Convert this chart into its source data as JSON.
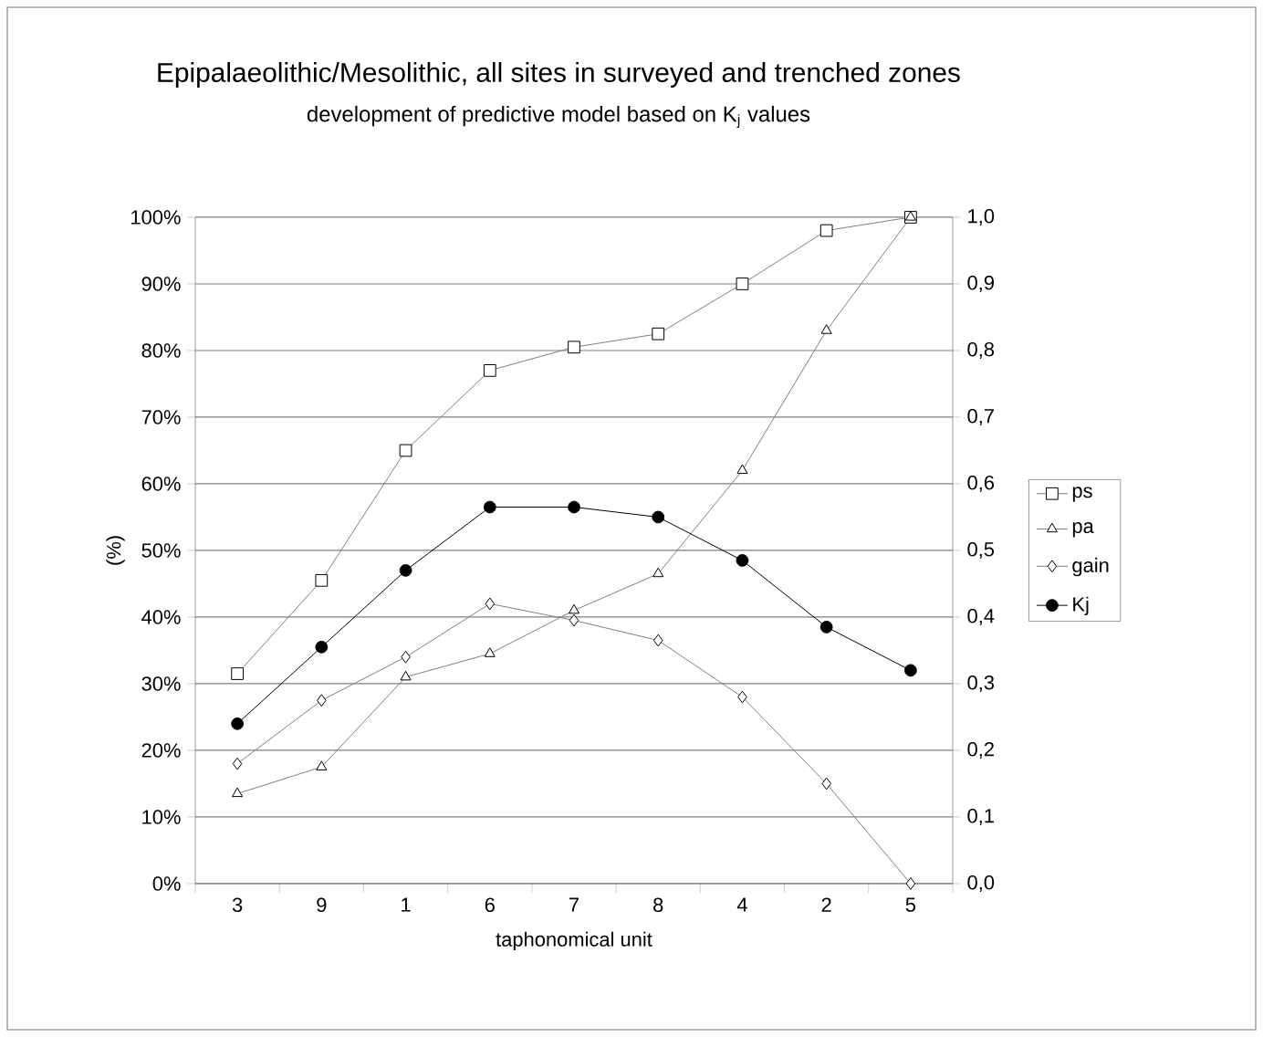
{
  "chart_data": {
    "type": "line",
    "title": "Epipalaeolithic/Mesolithic, all sites in surveyed and trenched zones",
    "subtitle": "development of predictive model based on K$_{j}$ values",
    "xlabel": "taphonomical unit",
    "ylabel": "(%)",
    "categories": [
      "3",
      "9",
      "1",
      "6",
      "7",
      "8",
      "4",
      "2",
      "5"
    ],
    "series": [
      {
        "name": "ps",
        "color": "#808080",
        "marker": "square",
        "values": [
          31.5,
          45.5,
          65,
          77,
          80.5,
          82.5,
          90,
          98,
          100
        ]
      },
      {
        "name": "pa",
        "color": "#808080",
        "marker": "triangle",
        "values": [
          13.5,
          17.5,
          31,
          34.5,
          41,
          46.5,
          62,
          83,
          100
        ]
      },
      {
        "name": "gain",
        "color": "#808080",
        "marker": "diamond",
        "values": [
          18,
          27.5,
          34,
          42,
          39.5,
          36.5,
          28,
          15,
          0
        ]
      },
      {
        "name": "Kj",
        "color": "#000000",
        "marker": "circle",
        "axis": "y2",
        "values": [
          0.24,
          0.355,
          0.47,
          0.565,
          0.565,
          0.55,
          0.485,
          0.385,
          0.32
        ]
      }
    ],
    "ylim": [
      0,
      100
    ],
    "yticks": [
      {
        "value": 0,
        "label": "0%"
      },
      {
        "value": 10,
        "label": "10%"
      },
      {
        "value": 20,
        "label": "20%"
      },
      {
        "value": 30,
        "label": "30%"
      },
      {
        "value": 40,
        "label": "40%"
      },
      {
        "value": 50,
        "label": "50%"
      },
      {
        "value": 60,
        "label": "60%"
      },
      {
        "value": 70,
        "label": "70%"
      },
      {
        "value": 80,
        "label": "80%"
      },
      {
        "value": 90,
        "label": "90%"
      },
      {
        "value": 100,
        "label": "100%"
      }
    ],
    "y2lim": [
      0,
      1
    ],
    "y2ticks": [
      {
        "value": 0,
        "label": "0,0"
      },
      {
        "value": 0.1,
        "label": "0,1"
      },
      {
        "value": 0.2,
        "label": "0,2"
      },
      {
        "value": 0.3,
        "label": "0,3"
      },
      {
        "value": 0.4,
        "label": "0,4"
      },
      {
        "value": 0.5,
        "label": "0,5"
      },
      {
        "value": 0.6,
        "label": "0,6"
      },
      {
        "value": 0.7,
        "label": "0,7"
      },
      {
        "value": 0.8,
        "label": "0,8"
      },
      {
        "value": 0.9,
        "label": "0,9"
      },
      {
        "value": 1,
        "label": "1,0"
      }
    ],
    "grid": "y",
    "legend": "right",
    "line_style": "solid"
  }
}
